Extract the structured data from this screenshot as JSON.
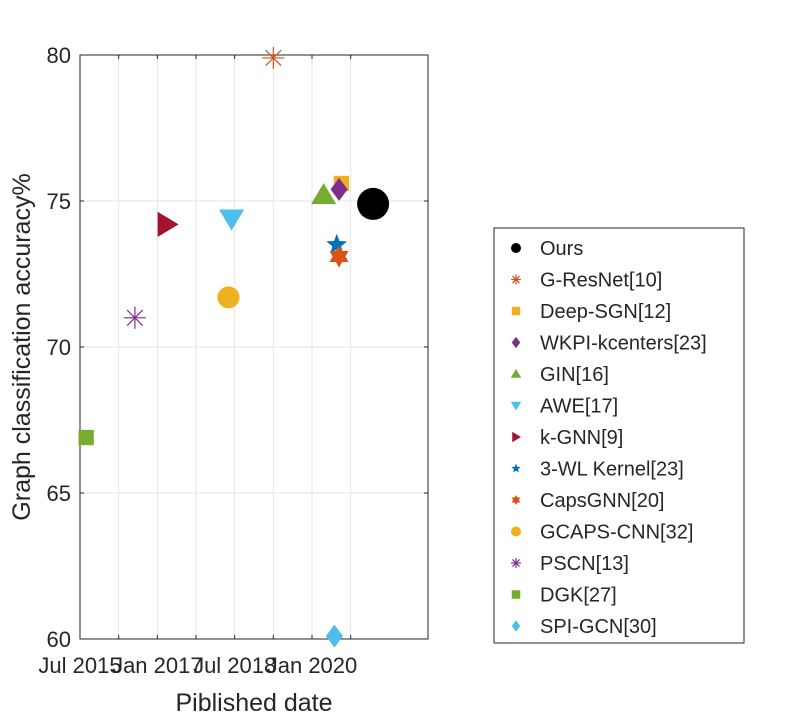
{
  "chart_data": {
    "type": "scatter",
    "title": "",
    "xlabel": "Piblished date",
    "ylabel": "Graph classification accuracy%",
    "xlim": [
      2015.5,
      2020.0
    ],
    "ylim": [
      60,
      80
    ],
    "x_ticks": [
      {
        "value": 2015.5,
        "label": "Jul 2015"
      },
      {
        "value": 2016.0,
        "label": ""
      },
      {
        "value": 2016.5,
        "label": "Jan 2017"
      },
      {
        "value": 2017.0,
        "label": ""
      },
      {
        "value": 2017.5,
        "label": "Jul 2018"
      },
      {
        "value": 2018.0,
        "label": ""
      },
      {
        "value": 2018.5,
        "label": "Jan 2020"
      },
      {
        "value": 2019.0,
        "label": ""
      }
    ],
    "y_ticks": [
      {
        "value": 60,
        "label": "60"
      },
      {
        "value": 65,
        "label": "65"
      },
      {
        "value": 70,
        "label": "70"
      },
      {
        "value": 75,
        "label": "75"
      },
      {
        "value": 80,
        "label": "80"
      }
    ],
    "grid": true,
    "legend_position": "right",
    "series": [
      {
        "name": "Ours",
        "marker": "circle",
        "color": "#000000",
        "x": 2019.29,
        "y": 74.9
      },
      {
        "name": "G-ResNet[10]",
        "marker": "asterisk",
        "color": "#D95319",
        "x": 2018.0,
        "y": 79.9
      },
      {
        "name": "Deep-SGN[12]",
        "marker": "square",
        "color": "#EDB120",
        "x": 2018.88,
        "y": 75.6
      },
      {
        "name": "WKPI-kcenters[23]",
        "marker": "diamond",
        "color": "#7E2F8E",
        "x": 2018.85,
        "y": 75.4
      },
      {
        "name": "GIN[16]",
        "marker": "triangle-up",
        "color": "#77AC30",
        "x": 2018.65,
        "y": 75.2
      },
      {
        "name": "AWE[17]",
        "marker": "triangle-down",
        "color": "#4DBEEE",
        "x": 2017.46,
        "y": 74.4
      },
      {
        "name": "k-GNN[9]",
        "marker": "triangle-right",
        "color": "#A2142F",
        "x": 2016.62,
        "y": 74.2
      },
      {
        "name": "3-WL Kernel[23]",
        "marker": "pentagram",
        "color": "#0072BD",
        "x": 2018.82,
        "y": 73.5
      },
      {
        "name": "CapsGNN[20]",
        "marker": "hexagram",
        "color": "#D95319",
        "x": 2018.85,
        "y": 73.1
      },
      {
        "name": "GCAPS-CNN[32]",
        "marker": "circle",
        "color": "#EDB120",
        "x": 2017.42,
        "y": 71.7
      },
      {
        "name": "PSCN[13]",
        "marker": "asterisk",
        "color": "#7E2F8E",
        "x": 2016.21,
        "y": 71.0
      },
      {
        "name": "DGK[27]",
        "marker": "square",
        "color": "#77AC30",
        "x": 2015.58,
        "y": 66.9
      },
      {
        "name": "SPI-GCN[30]",
        "marker": "diamond",
        "color": "#4DBEEE",
        "x": 2018.79,
        "y": 60.1
      }
    ]
  }
}
